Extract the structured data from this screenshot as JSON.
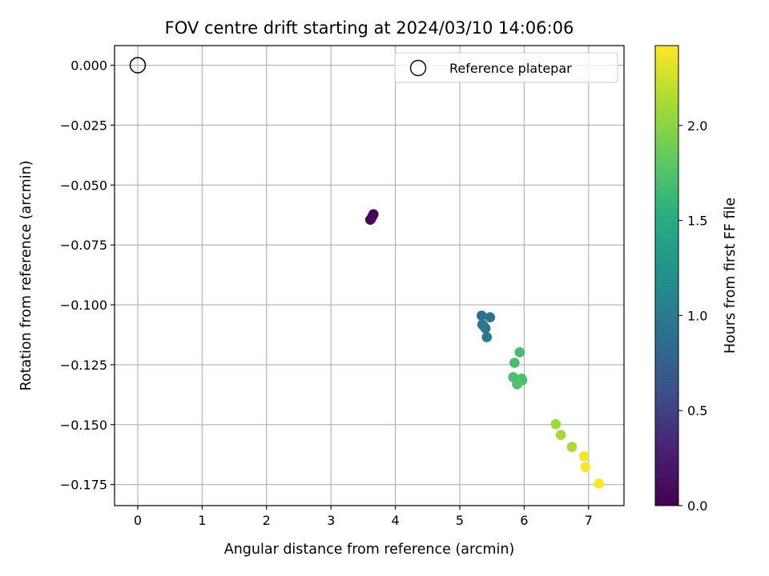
{
  "chart_data": {
    "type": "scatter",
    "title": "FOV centre drift starting at 2024/03/10 14:06:06",
    "xlabel": "Angular distance from reference (arcmin)",
    "ylabel": "Rotation from reference (arcmin)",
    "xlim": [
      -0.36,
      7.55
    ],
    "ylim": [
      -0.1838,
      0.0082
    ],
    "x_ticks": [
      0,
      1,
      2,
      3,
      4,
      5,
      6,
      7
    ],
    "y_ticks": [
      0.0,
      -0.025,
      -0.05,
      -0.075,
      -0.1,
      -0.125,
      -0.15,
      -0.175
    ],
    "x_tick_labels": [
      "0",
      "1",
      "2",
      "3",
      "4",
      "5",
      "6",
      "7"
    ],
    "y_tick_labels": [
      "0.000",
      "−0.025",
      "−0.050",
      "−0.075",
      "−0.100",
      "−0.125",
      "−0.150",
      "−0.175"
    ],
    "grid": true,
    "legend": {
      "placement": "top-right",
      "entries": [
        "Reference platepar"
      ]
    },
    "reference": {
      "name": "Reference platepar",
      "x": 0.0,
      "y": 0.0
    },
    "colorbar": {
      "label": "Hours from first FF file",
      "range": [
        0.0,
        2.42
      ],
      "ticks": [
        0.0,
        0.5,
        1.0,
        1.5,
        2.0
      ],
      "tick_labels": [
        "0.0",
        "0.5",
        "1.0",
        "1.5",
        "2.0"
      ],
      "colormap": "viridis"
    },
    "series": [
      {
        "points": [
          {
            "x": 3.66,
            "y": -0.0622,
            "t": 0.02
          },
          {
            "x": 3.64,
            "y": -0.0632,
            "t": 0.03
          },
          {
            "x": 3.62,
            "y": -0.0642,
            "t": 0.04
          },
          {
            "x": 3.61,
            "y": -0.0645,
            "t": 0.05
          },
          {
            "x": 5.34,
            "y": -0.1045,
            "t": 0.9
          },
          {
            "x": 5.47,
            "y": -0.1052,
            "t": 0.92
          },
          {
            "x": 5.35,
            "y": -0.1082,
            "t": 0.95
          },
          {
            "x": 5.37,
            "y": -0.1088,
            "t": 0.96
          },
          {
            "x": 5.4,
            "y": -0.1098,
            "t": 0.97
          },
          {
            "x": 5.42,
            "y": -0.1135,
            "t": 0.98
          },
          {
            "x": 5.93,
            "y": -0.1198,
            "t": 1.68
          },
          {
            "x": 5.85,
            "y": -0.1242,
            "t": 1.69
          },
          {
            "x": 5.83,
            "y": -0.1302,
            "t": 1.7
          },
          {
            "x": 5.96,
            "y": -0.1308,
            "t": 1.71
          },
          {
            "x": 5.97,
            "y": -0.1315,
            "t": 1.72
          },
          {
            "x": 5.89,
            "y": -0.1332,
            "t": 1.73
          },
          {
            "x": 6.49,
            "y": -0.1498,
            "t": 2.08
          },
          {
            "x": 6.57,
            "y": -0.1543,
            "t": 2.1
          },
          {
            "x": 6.74,
            "y": -0.1593,
            "t": 2.12
          },
          {
            "x": 6.93,
            "y": -0.1632,
            "t": 2.38
          },
          {
            "x": 6.95,
            "y": -0.1677,
            "t": 2.4
          },
          {
            "x": 7.16,
            "y": -0.1746,
            "t": 2.42
          }
        ]
      }
    ]
  }
}
